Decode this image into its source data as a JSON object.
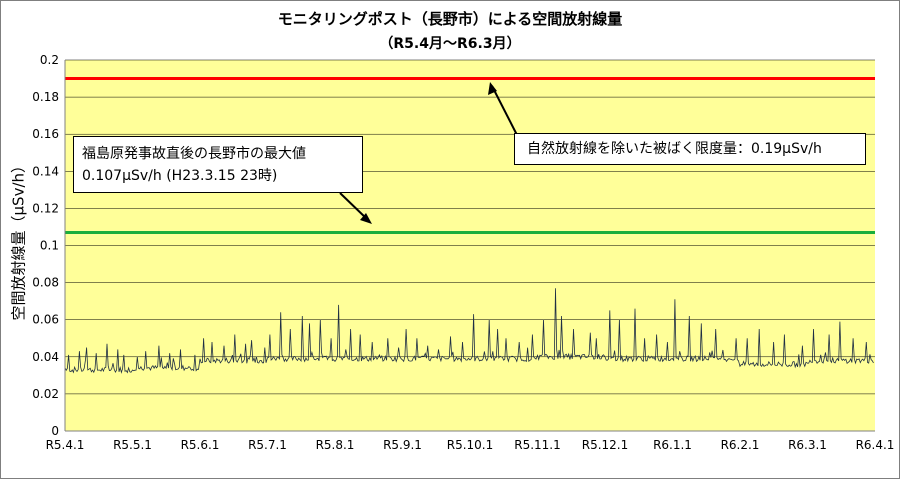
{
  "title": "モニタリングポスト（長野市）による空間放射線量",
  "subtitle": "（R5.4月～R6.3月）",
  "annotations": {
    "max_after_accident_line1": "福島原発事故直後の長野市の最大値",
    "max_after_accident_line2": "0.107μSv/h (H23.3.15 23時)",
    "natural_excluded_limit": "自然放射線を除いた被ばく限度量：0.19μSv/h"
  },
  "colors": {
    "plot_background": "#ffff99",
    "limit_line": "#ff0000",
    "max_line": "#1aae3c",
    "data_line": "#1f2f44"
  },
  "chart_data": {
    "type": "line",
    "title": "モニタリングポスト（長野市）による空間放射線量",
    "subtitle": "（R5.4月～R6.3月）",
    "xlabel": "",
    "ylabel": "空間放射線量（μSv/h）",
    "ylim": [
      0,
      0.2
    ],
    "y_ticks": [
      "0",
      "0.02",
      "0.04",
      "0.06",
      "0.08",
      "0.1",
      "0.12",
      "0.14",
      "0.16",
      "0.18",
      "0.2"
    ],
    "x_ticks": [
      "R5.4.1",
      "R5.5.1",
      "R5.6.1",
      "R5.7.1",
      "R5.8.1",
      "R5.9.1",
      "R5.10.1",
      "R5.11.1",
      "R5.12.1",
      "R6.1.1",
      "R6.2.1",
      "R6.3.1",
      "R6.4.1"
    ],
    "grid": true,
    "reference_lines": [
      {
        "value": 0.19
      },
      {
        "value": 0.107
      }
    ],
    "series": [
      {
        "segments": [
          {
            "from": "R5.4.1",
            "to": "R5.5.1",
            "base": 0.033,
            "spikes": [
              0.041,
              0.043,
              0.045,
              0.042,
              0.047,
              0.044,
              0.041
            ]
          },
          {
            "from": "R5.5.1",
            "to": "R5.6.1",
            "base": 0.034,
            "spikes": [
              0.04,
              0.043,
              0.046,
              0.042,
              0.044,
              0.041
            ]
          },
          {
            "from": "R5.6.1",
            "to": "R5.7.1",
            "base": 0.038,
            "spikes": [
              0.05,
              0.048,
              0.046,
              0.052,
              0.047,
              0.049,
              0.045
            ]
          },
          {
            "from": "R5.7.1",
            "to": "R5.8.1",
            "base": 0.039,
            "spikes": [
              0.052,
              0.064,
              0.055,
              0.062,
              0.058,
              0.06,
              0.05
            ]
          },
          {
            "from": "R5.8.1",
            "to": "R5.9.1",
            "base": 0.039,
            "spikes": [
              0.068,
              0.055,
              0.052,
              0.048,
              0.05,
              0.045
            ]
          },
          {
            "from": "R5.9.1",
            "to": "R5.10.1",
            "base": 0.039,
            "spikes": [
              0.055,
              0.05,
              0.046,
              0.044,
              0.051,
              0.048
            ]
          },
          {
            "from": "R5.10.1",
            "to": "R5.11.1",
            "base": 0.039,
            "spikes": [
              0.063,
              0.06,
              0.055,
              0.05,
              0.048,
              0.052
            ]
          },
          {
            "from": "R5.11.1",
            "to": "R5.12.1",
            "base": 0.04,
            "spikes": [
              0.06,
              0.077,
              0.062,
              0.055,
              0.053,
              0.05
            ]
          },
          {
            "from": "R5.12.1",
            "to": "R6.1.1",
            "base": 0.039,
            "spikes": [
              0.065,
              0.06,
              0.066,
              0.05,
              0.052,
              0.048
            ]
          },
          {
            "from": "R6.1.1",
            "to": "R6.2.1",
            "base": 0.039,
            "spikes": [
              0.071,
              0.062,
              0.058,
              0.055,
              0.05
            ]
          },
          {
            "from": "R6.2.1",
            "to": "R6.3.1",
            "base": 0.036,
            "spikes": [
              0.05,
              0.055,
              0.048,
              0.052,
              0.046
            ]
          },
          {
            "from": "R6.3.1",
            "to": "R6.4.1",
            "base": 0.038,
            "spikes": [
              0.055,
              0.052,
              0.059,
              0.05,
              0.048
            ]
          }
        ]
      }
    ]
  }
}
